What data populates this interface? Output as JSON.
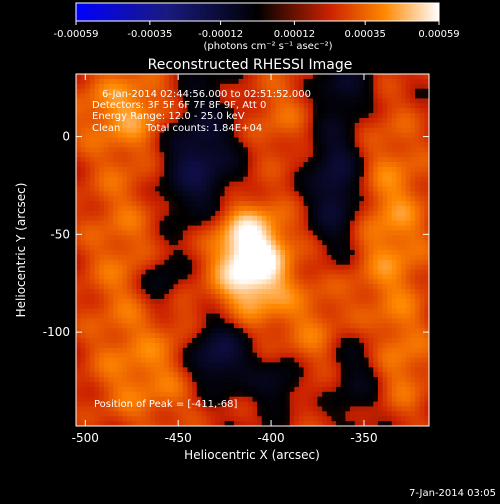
{
  "colorbar": {
    "ticks": [
      "-0.00059",
      "-0.00035",
      "-0.00012",
      "0.00012",
      "0.00035",
      "0.00059"
    ],
    "min": -0.00059,
    "max": 0.00059,
    "unit_label": "(photons cm⁻² s⁻¹ asec⁻²)"
  },
  "header": {
    "title": "Reconstructed RHESSI Image"
  },
  "annotations": {
    "time_range": "6-Jan-2014 02:44:56.000 to 02:51:52.000",
    "detectors": "Detectors: 3F 5F 6F 7F 8F 9F, Att 0",
    "energy": "Energy Range: 12.0 - 25.0 keV",
    "clean": "Clean",
    "counts": "Total counts: 1.84E+04",
    "peak": "Position of Peak = [-411,-68]"
  },
  "footer": {
    "timestamp": "7-Jan-2014 03:05"
  },
  "chart_data": {
    "type": "heatmap",
    "title": "Reconstructed RHESSI Image",
    "xlabel": "Heliocentric X (arcsec)",
    "ylabel": "Heliocentric Y (arcsec)",
    "xlim": [
      -505,
      -315
    ],
    "ylim": [
      -148,
      32
    ],
    "x_ticks": [
      -500,
      -450,
      -400,
      -350
    ],
    "y_ticks": [
      0,
      -50,
      -100
    ],
    "x_tick_labels": [
      "-500",
      "-450",
      "-400",
      "-350"
    ],
    "y_tick_labels": [
      "0",
      "-50",
      "-100"
    ],
    "peak": [
      -411,
      -68
    ],
    "colormap": "red-temperature (blue-black-red-yellow-white)",
    "features": {
      "peaks": [
        {
          "x": -411,
          "y": -68,
          "sx": 14,
          "sy": 18,
          "amp": 1.0
        },
        {
          "x": -418,
          "y": -48,
          "sx": 20,
          "sy": 14,
          "amp": 0.45
        },
        {
          "x": -335,
          "y": -45,
          "sx": 16,
          "sy": 45,
          "amp": 0.55
        },
        {
          "x": -480,
          "y": -60,
          "sx": 18,
          "sy": 60,
          "amp": 0.4
        },
        {
          "x": -470,
          "y": 15,
          "sx": 30,
          "sy": 15,
          "amp": 0.45
        },
        {
          "x": -395,
          "y": 10,
          "sx": 14,
          "sy": 20,
          "amp": 0.35
        },
        {
          "x": -375,
          "y": -105,
          "sx": 18,
          "sy": 28,
          "amp": 0.45
        },
        {
          "x": -455,
          "y": -125,
          "sx": 25,
          "sy": 18,
          "amp": 0.35
        },
        {
          "x": -330,
          "y": -120,
          "sx": 14,
          "sy": 20,
          "amp": 0.35
        },
        {
          "x": -440,
          "y": -95,
          "sx": 14,
          "sy": 14,
          "amp": 0.3
        }
      ],
      "troughs": [
        {
          "x": -440,
          "y": -10,
          "sx": 14,
          "sy": 30,
          "amp": 0.7
        },
        {
          "x": -430,
          "y": -110,
          "sx": 12,
          "sy": 14,
          "amp": 0.9
        },
        {
          "x": -365,
          "y": -25,
          "sx": 10,
          "sy": 25,
          "amp": 0.65
        },
        {
          "x": -355,
          "y": -120,
          "sx": 12,
          "sy": 18,
          "amp": 0.55
        },
        {
          "x": -460,
          "y": -75,
          "sx": 8,
          "sy": 10,
          "amp": 0.45
        },
        {
          "x": -360,
          "y": 25,
          "sx": 10,
          "sy": 8,
          "amp": 0.4
        },
        {
          "x": -395,
          "y": -125,
          "sx": 10,
          "sy": 10,
          "amp": 0.5
        }
      ]
    }
  }
}
